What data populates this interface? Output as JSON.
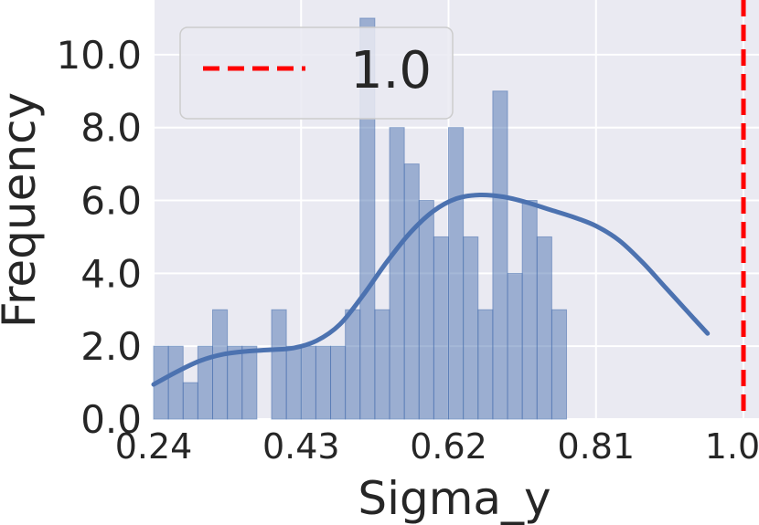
{
  "chart_data": {
    "type": "histogram",
    "xlabel": "Sigma_y",
    "ylabel": "Frequency",
    "xlim": [
      0.24,
      1.02
    ],
    "ylim": [
      0,
      11.5
    ],
    "xticks": [
      "0.24",
      "0.43",
      "0.62",
      "0.81",
      "1.00"
    ],
    "yticks": [
      "0.0",
      "2.0",
      "4.0",
      "6.0",
      "8.0",
      "10.0"
    ],
    "grid": true,
    "legend_position": "upper-left",
    "bins": {
      "start": 0.24,
      "width": 0.019,
      "counts": [
        2,
        2,
        1,
        2,
        3,
        2,
        2,
        0,
        3,
        2,
        2,
        2,
        2,
        3,
        11,
        3,
        8,
        7,
        6,
        5,
        8,
        5,
        3,
        9,
        4,
        6,
        5,
        3
      ]
    },
    "kde": {
      "x": [
        0.24,
        0.27,
        0.3,
        0.33,
        0.36,
        0.39,
        0.42,
        0.45,
        0.48,
        0.51,
        0.54,
        0.57,
        0.6,
        0.63,
        0.66,
        0.69,
        0.72,
        0.75,
        0.78,
        0.81,
        0.84,
        0.87,
        0.9,
        0.93,
        0.9537
      ],
      "y": [
        0.95,
        1.3,
        1.6,
        1.78,
        1.86,
        1.9,
        1.95,
        2.15,
        2.6,
        3.4,
        4.3,
        5.1,
        5.7,
        6.05,
        6.15,
        6.1,
        5.95,
        5.75,
        5.55,
        5.3,
        4.9,
        4.3,
        3.6,
        2.9,
        2.35
      ]
    },
    "reference_line": {
      "x": 1.0,
      "label": "1.0",
      "color": "#ff0000",
      "style": "dashed"
    },
    "colors": {
      "bars": "#4c72b0",
      "kde_line": "#4c72b0",
      "plot_background": "#eaeaf2",
      "grid": "#ffffff"
    }
  }
}
